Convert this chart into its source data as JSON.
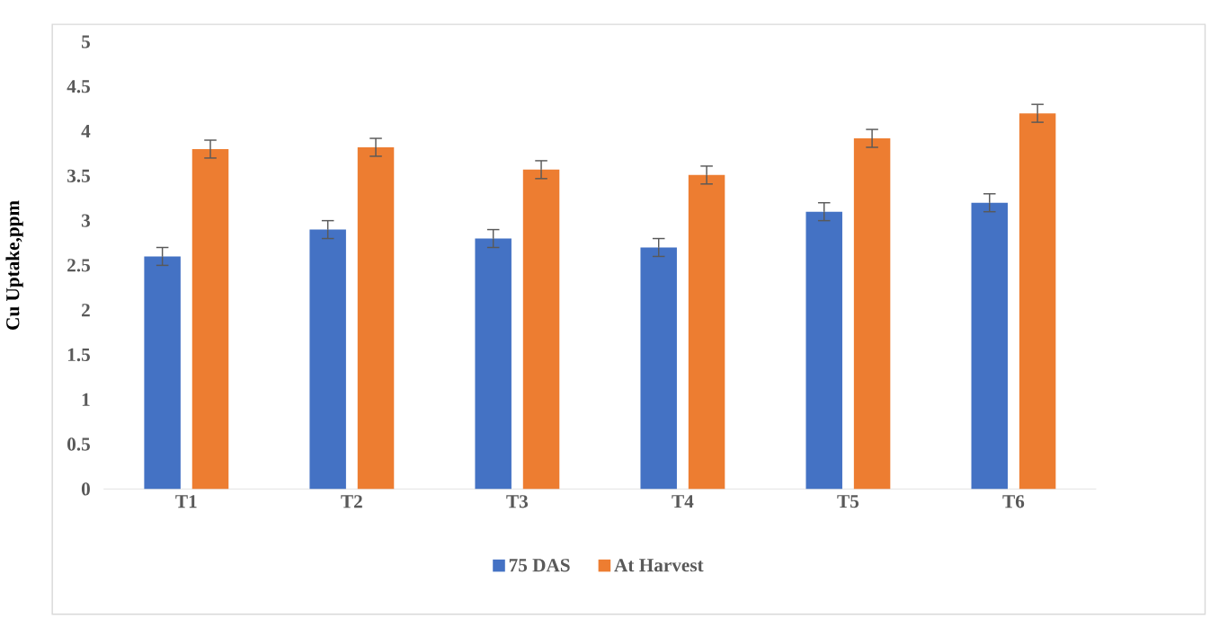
{
  "chart_data": {
    "type": "bar",
    "ylabel": "Cu Uptake,ppm",
    "categories": [
      "T1",
      "T2",
      "T3",
      "T4",
      "T5",
      "T6"
    ],
    "series": [
      {
        "name": "75 DAS",
        "color": "#4472c4",
        "values": [
          2.6,
          2.9,
          2.8,
          2.7,
          3.1,
          3.2
        ],
        "errors": [
          0.1,
          0.1,
          0.1,
          0.1,
          0.1,
          0.1
        ]
      },
      {
        "name": "At Harvest",
        "color": "#ed7d31",
        "values": [
          3.8,
          3.82,
          3.57,
          3.51,
          3.92,
          4.2
        ],
        "errors": [
          0.1,
          0.1,
          0.1,
          0.1,
          0.1,
          0.1
        ]
      }
    ],
    "ylim": [
      0,
      5
    ],
    "yticks": [
      0,
      0.5,
      1,
      1.5,
      2,
      2.5,
      3,
      3.5,
      4,
      4.5,
      5
    ],
    "legend": "bottom",
    "grid": false
  }
}
